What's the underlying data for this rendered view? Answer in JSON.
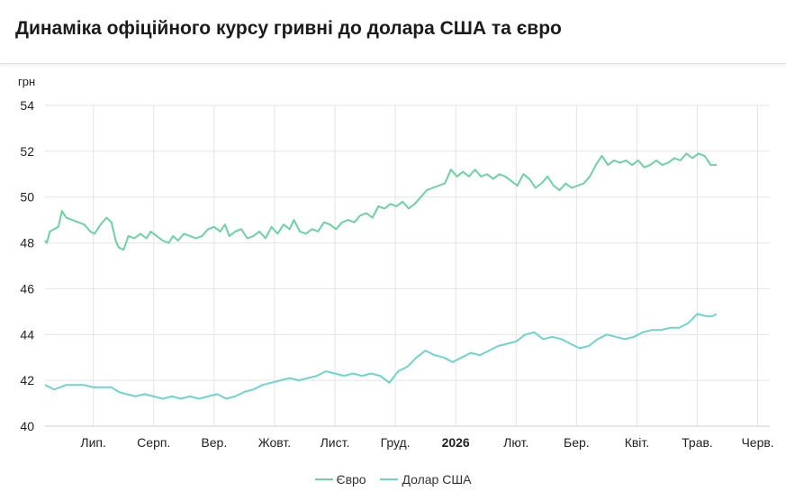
{
  "header": {
    "title": "Динаміка офіційного курсу гривні до долара США та євро"
  },
  "colors": {
    "euro": "#6ed1a1",
    "usd": "#70d3cc",
    "grid": "#e4e4e4"
  },
  "chart_data": {
    "type": "line",
    "ylabel": "грн",
    "ylim": [
      40,
      54
    ],
    "yticks": [
      40,
      42,
      44,
      46,
      48,
      50,
      52,
      54
    ],
    "x_tick_labels": [
      "Лип.",
      "Серп.",
      "Вер.",
      "Жовт.",
      "Лист.",
      "Груд.",
      "2026",
      "Лют.",
      "Бер.",
      "Квіт.",
      "Трав.",
      "Черв."
    ],
    "x_tick_bold": [
      "2026"
    ],
    "x_range_months": [
      0,
      12
    ],
    "x_tick_months": [
      0.8,
      1.8,
      2.8,
      3.8,
      4.8,
      5.8,
      6.8,
      7.8,
      8.8,
      9.8,
      10.8,
      11.8
    ],
    "series": [
      {
        "name": "Євро",
        "color": "#6ed1a1",
        "points": [
          [
            0.0,
            48.1
          ],
          [
            0.03,
            48.0
          ],
          [
            0.08,
            48.5
          ],
          [
            0.15,
            48.6
          ],
          [
            0.22,
            48.7
          ],
          [
            0.28,
            49.4
          ],
          [
            0.35,
            49.1
          ],
          [
            0.45,
            49.0
          ],
          [
            0.55,
            48.9
          ],
          [
            0.65,
            48.8
          ],
          [
            0.75,
            48.5
          ],
          [
            0.82,
            48.4
          ],
          [
            0.92,
            48.8
          ],
          [
            1.02,
            49.1
          ],
          [
            1.1,
            48.9
          ],
          [
            1.17,
            48.1
          ],
          [
            1.22,
            47.8
          ],
          [
            1.3,
            47.7
          ],
          [
            1.38,
            48.3
          ],
          [
            1.48,
            48.2
          ],
          [
            1.58,
            48.4
          ],
          [
            1.68,
            48.2
          ],
          [
            1.75,
            48.5
          ],
          [
            1.85,
            48.3
          ],
          [
            1.95,
            48.1
          ],
          [
            2.05,
            48.0
          ],
          [
            2.12,
            48.3
          ],
          [
            2.2,
            48.1
          ],
          [
            2.3,
            48.4
          ],
          [
            2.4,
            48.3
          ],
          [
            2.5,
            48.2
          ],
          [
            2.6,
            48.3
          ],
          [
            2.7,
            48.6
          ],
          [
            2.8,
            48.7
          ],
          [
            2.9,
            48.5
          ],
          [
            2.98,
            48.8
          ],
          [
            3.05,
            48.3
          ],
          [
            3.15,
            48.5
          ],
          [
            3.25,
            48.6
          ],
          [
            3.35,
            48.2
          ],
          [
            3.45,
            48.3
          ],
          [
            3.55,
            48.5
          ],
          [
            3.65,
            48.2
          ],
          [
            3.75,
            48.7
          ],
          [
            3.85,
            48.4
          ],
          [
            3.95,
            48.8
          ],
          [
            4.05,
            48.6
          ],
          [
            4.12,
            49.0
          ],
          [
            4.22,
            48.5
          ],
          [
            4.32,
            48.4
          ],
          [
            4.42,
            48.6
          ],
          [
            4.52,
            48.5
          ],
          [
            4.62,
            48.9
          ],
          [
            4.72,
            48.8
          ],
          [
            4.82,
            48.6
          ],
          [
            4.92,
            48.9
          ],
          [
            5.02,
            49.0
          ],
          [
            5.12,
            48.9
          ],
          [
            5.22,
            49.2
          ],
          [
            5.32,
            49.3
          ],
          [
            5.42,
            49.1
          ],
          [
            5.52,
            49.6
          ],
          [
            5.62,
            49.5
          ],
          [
            5.72,
            49.7
          ],
          [
            5.82,
            49.6
          ],
          [
            5.92,
            49.8
          ],
          [
            6.02,
            49.5
          ],
          [
            6.12,
            49.7
          ],
          [
            6.22,
            50.0
          ],
          [
            6.32,
            50.3
          ],
          [
            6.42,
            50.4
          ],
          [
            6.52,
            50.5
          ],
          [
            6.62,
            50.6
          ],
          [
            6.72,
            51.2
          ],
          [
            6.82,
            50.9
          ],
          [
            6.92,
            51.1
          ],
          [
            7.02,
            50.9
          ],
          [
            7.12,
            51.2
          ],
          [
            7.22,
            50.9
          ],
          [
            7.32,
            51.0
          ],
          [
            7.42,
            50.8
          ],
          [
            7.52,
            51.0
          ],
          [
            7.62,
            50.9
          ],
          [
            7.72,
            50.7
          ],
          [
            7.82,
            50.5
          ],
          [
            7.92,
            51.0
          ],
          [
            8.02,
            50.8
          ],
          [
            8.12,
            50.4
          ],
          [
            8.22,
            50.6
          ],
          [
            8.32,
            50.9
          ],
          [
            8.42,
            50.5
          ],
          [
            8.52,
            50.3
          ],
          [
            8.62,
            50.6
          ],
          [
            8.72,
            50.4
          ],
          [
            8.82,
            50.5
          ],
          [
            8.92,
            50.6
          ],
          [
            9.02,
            50.9
          ],
          [
            9.12,
            51.4
          ],
          [
            9.22,
            51.8
          ],
          [
            9.32,
            51.4
          ],
          [
            9.42,
            51.6
          ],
          [
            9.52,
            51.5
          ],
          [
            9.62,
            51.6
          ],
          [
            9.72,
            51.4
          ],
          [
            9.82,
            51.6
          ],
          [
            9.92,
            51.3
          ],
          [
            10.02,
            51.4
          ],
          [
            10.12,
            51.6
          ],
          [
            10.22,
            51.4
          ],
          [
            10.32,
            51.5
          ],
          [
            10.42,
            51.7
          ],
          [
            10.52,
            51.6
          ],
          [
            10.62,
            51.9
          ],
          [
            10.72,
            51.7
          ],
          [
            10.82,
            51.9
          ],
          [
            10.92,
            51.8
          ],
          [
            11.02,
            51.4
          ],
          [
            11.12,
            51.4
          ]
        ]
      },
      {
        "name": "Долар США",
        "color": "#70d3cc",
        "points": [
          [
            0.0,
            41.8
          ],
          [
            0.08,
            41.7
          ],
          [
            0.15,
            41.6
          ],
          [
            0.25,
            41.7
          ],
          [
            0.35,
            41.8
          ],
          [
            0.5,
            41.8
          ],
          [
            0.65,
            41.8
          ],
          [
            0.8,
            41.7
          ],
          [
            0.95,
            41.7
          ],
          [
            1.1,
            41.7
          ],
          [
            1.22,
            41.5
          ],
          [
            1.35,
            41.4
          ],
          [
            1.5,
            41.3
          ],
          [
            1.65,
            41.4
          ],
          [
            1.8,
            41.3
          ],
          [
            1.95,
            41.2
          ],
          [
            2.1,
            41.3
          ],
          [
            2.25,
            41.2
          ],
          [
            2.4,
            41.3
          ],
          [
            2.55,
            41.2
          ],
          [
            2.7,
            41.3
          ],
          [
            2.85,
            41.4
          ],
          [
            3.0,
            41.2
          ],
          [
            3.15,
            41.3
          ],
          [
            3.3,
            41.5
          ],
          [
            3.45,
            41.6
          ],
          [
            3.6,
            41.8
          ],
          [
            3.75,
            41.9
          ],
          [
            3.9,
            42.0
          ],
          [
            4.05,
            42.1
          ],
          [
            4.2,
            42.0
          ],
          [
            4.35,
            42.1
          ],
          [
            4.5,
            42.2
          ],
          [
            4.65,
            42.4
          ],
          [
            4.8,
            42.3
          ],
          [
            4.95,
            42.2
          ],
          [
            5.1,
            42.3
          ],
          [
            5.25,
            42.2
          ],
          [
            5.4,
            42.3
          ],
          [
            5.55,
            42.2
          ],
          [
            5.7,
            41.9
          ],
          [
            5.85,
            42.4
          ],
          [
            6.0,
            42.6
          ],
          [
            6.15,
            43.0
          ],
          [
            6.3,
            43.3
          ],
          [
            6.45,
            43.1
          ],
          [
            6.6,
            43.0
          ],
          [
            6.75,
            42.8
          ],
          [
            6.9,
            43.0
          ],
          [
            7.05,
            43.2
          ],
          [
            7.2,
            43.1
          ],
          [
            7.35,
            43.3
          ],
          [
            7.5,
            43.5
          ],
          [
            7.65,
            43.6
          ],
          [
            7.8,
            43.7
          ],
          [
            7.95,
            44.0
          ],
          [
            8.1,
            44.1
          ],
          [
            8.25,
            43.8
          ],
          [
            8.4,
            43.9
          ],
          [
            8.55,
            43.8
          ],
          [
            8.7,
            43.6
          ],
          [
            8.85,
            43.4
          ],
          [
            9.0,
            43.5
          ],
          [
            9.15,
            43.8
          ],
          [
            9.3,
            44.0
          ],
          [
            9.45,
            43.9
          ],
          [
            9.6,
            43.8
          ],
          [
            9.75,
            43.9
          ],
          [
            9.9,
            44.1
          ],
          [
            10.05,
            44.2
          ],
          [
            10.2,
            44.2
          ],
          [
            10.35,
            44.3
          ],
          [
            10.5,
            44.3
          ],
          [
            10.65,
            44.5
          ],
          [
            10.8,
            44.9
          ],
          [
            10.95,
            44.8
          ],
          [
            11.05,
            44.8
          ],
          [
            11.12,
            44.9
          ]
        ]
      }
    ]
  },
  "legend": {
    "items": [
      "Євро",
      "Долар США"
    ]
  }
}
